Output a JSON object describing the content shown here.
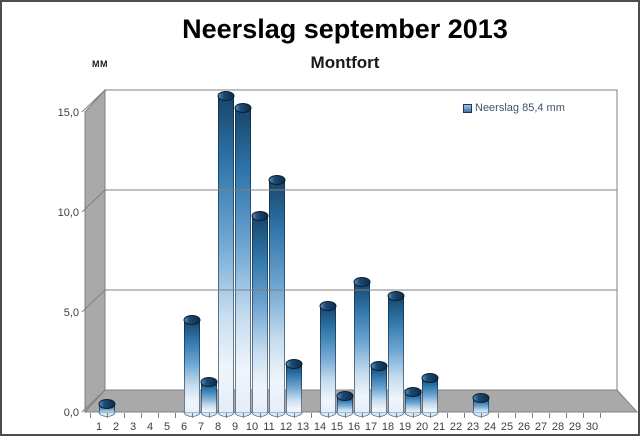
{
  "header": {
    "title": "Neerslag september 2013",
    "subtitle": "Montfort",
    "y_unit_label": "mm"
  },
  "legend": {
    "label": "Neerslag 85,4 mm"
  },
  "chart_data": {
    "type": "bar",
    "style": "3d-cylinder",
    "title": "Neerslag september 2013",
    "subtitle": "Montfort",
    "xlabel": "",
    "ylabel": "mm",
    "categories": [
      1,
      2,
      3,
      4,
      5,
      6,
      7,
      8,
      9,
      10,
      11,
      12,
      13,
      14,
      15,
      16,
      17,
      18,
      19,
      20,
      21,
      22,
      23,
      24,
      25,
      26,
      27,
      28,
      29,
      30
    ],
    "series": [
      {
        "name": "Neerslag 85,4 mm",
        "values": [
          0.4,
          0,
          0,
          0,
          0,
          4.6,
          1.5,
          15.8,
          15.2,
          9.8,
          11.6,
          2.4,
          0,
          5.3,
          0.8,
          6.5,
          2.3,
          5.8,
          1.0,
          1.7,
          0,
          0,
          0.7,
          0,
          0,
          0,
          0,
          0,
          0,
          0
        ]
      }
    ],
    "total_mm": 85.4,
    "ylim": [
      0,
      15
    ],
    "ytick_labels": [
      "0,0",
      "5,0",
      "10,0",
      "15,0"
    ],
    "ytick_values": [
      0,
      5,
      10,
      15
    ],
    "grid": true,
    "legend_position": "top-right",
    "legend_entries": [
      "Neerslag 85,4 mm"
    ],
    "colors": {
      "bar_cap_dark": "#0D2B49",
      "bar_cap_light": "#5E93BE",
      "bar_top": "#174569",
      "bar_mid": "#2E74A9",
      "bar_light_blue": "#6FA6D2",
      "bar_pale": "#C6DDF0",
      "bar_white": "#EFF5FB",
      "bar_bottom": "#E2EDF8",
      "wall": "#A9A9A9",
      "grid_line": "#808080",
      "axis_text": "#3F3F3F",
      "legend_text": "#44546A"
    }
  }
}
